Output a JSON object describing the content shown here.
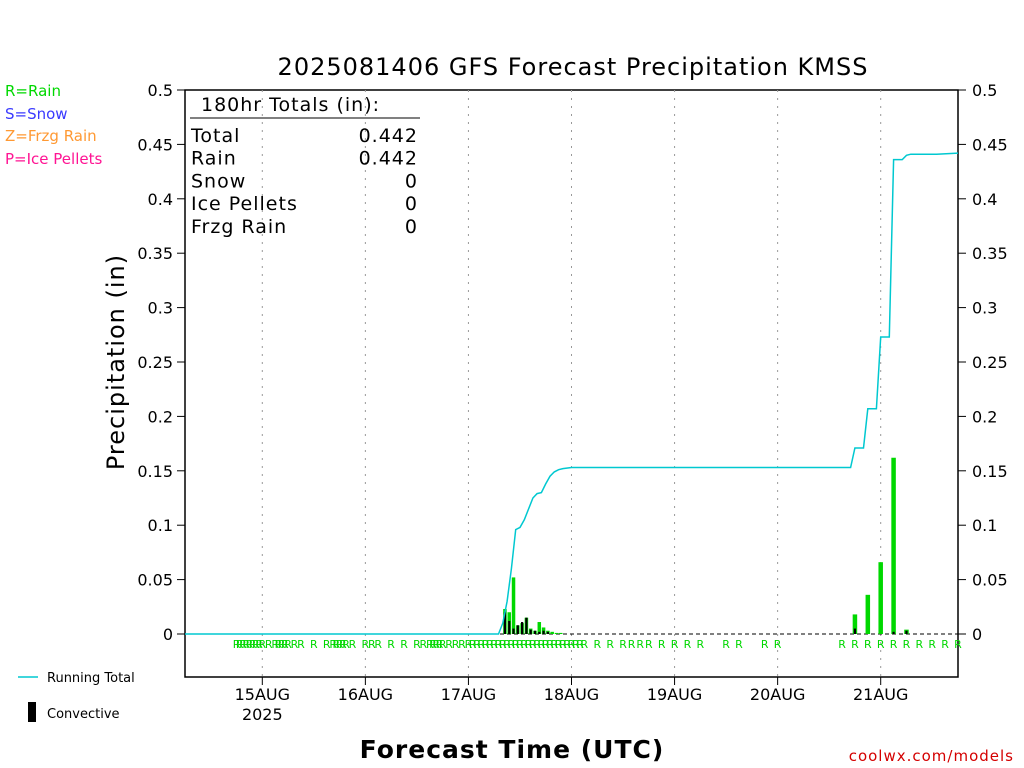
{
  "colors": {
    "rain": "#00d800",
    "snow": "#3a3aff",
    "frzg_rain": "#ff9933",
    "ice_pellets": "#ff1493",
    "running_total": "#00c8d0",
    "convective": "#000000",
    "grid": "#999999",
    "watermark": "#d40000"
  },
  "legend_left": {
    "rain": "R=Rain",
    "snow": "S=Snow",
    "frzg_rain": "Z=Frzg Rain",
    "ice_pellets": "P=Ice Pellets"
  },
  "legend_bottom": {
    "running_total": "Running Total",
    "convective": "Convective"
  },
  "totals_box": {
    "title": "180hr Totals (in):",
    "rows": [
      {
        "label": "Total",
        "value": "0.442"
      },
      {
        "label": "Rain",
        "value": "0.442"
      },
      {
        "label": "Snow",
        "value": "0"
      },
      {
        "label": "Ice Pellets",
        "value": "0"
      },
      {
        "label": "Frzg Rain",
        "value": "0"
      }
    ]
  },
  "watermark": "coolwx.com/models",
  "chart_data": {
    "type": "bar",
    "title": "2025081406 GFS Forecast Precipitation KMSS",
    "xlabel": "Forecast Time (UTC)",
    "ylabel": "Precipitation (in)",
    "xlim_hours": [
      0,
      180
    ],
    "ylim": [
      -0.04,
      0.5
    ],
    "yticks": [
      0,
      0.05,
      0.1,
      0.15,
      0.2,
      0.25,
      0.3,
      0.35,
      0.4,
      0.45,
      0.5
    ],
    "ytick_labels": [
      "0",
      "0.05",
      "0.1",
      "0.15",
      "0.2",
      "0.25",
      "0.3",
      "0.35",
      "0.4",
      "0.45",
      "0.5"
    ],
    "xticks": [
      {
        "hour": 18,
        "label": "15AUG",
        "sublabel": "2025"
      },
      {
        "hour": 42,
        "label": "16AUG",
        "sublabel": ""
      },
      {
        "hour": 66,
        "label": "17AUG",
        "sublabel": ""
      },
      {
        "hour": 90,
        "label": "18AUG",
        "sublabel": ""
      },
      {
        "hour": 114,
        "label": "19AUG",
        "sublabel": ""
      },
      {
        "hour": 138,
        "label": "20AUG",
        "sublabel": ""
      },
      {
        "hour": 162,
        "label": "21AUG",
        "sublabel": ""
      }
    ],
    "grid": "vertical dotted",
    "legend": "left",
    "precip_bars": [
      [
        74.5,
        0.023
      ],
      [
        75.5,
        0.02
      ],
      [
        76.5,
        0.052
      ],
      [
        77.5,
        0.008
      ],
      [
        78.5,
        0.01
      ],
      [
        79.5,
        0.015
      ],
      [
        80.5,
        0.005
      ],
      [
        81.5,
        0.003
      ],
      [
        82.5,
        0.011
      ],
      [
        83.5,
        0.006
      ],
      [
        84.5,
        0.003
      ],
      [
        85.5,
        0.002
      ],
      [
        86.5,
        0.001
      ],
      [
        87.5,
        0.001
      ],
      [
        156,
        0.018
      ],
      [
        159,
        0.036
      ],
      [
        162,
        0.066
      ],
      [
        165,
        0.162
      ],
      [
        168,
        0.004
      ]
    ],
    "convective_bars": [
      [
        74.5,
        0.02
      ],
      [
        75.5,
        0.012
      ],
      [
        76.5,
        0.005
      ],
      [
        77.5,
        0.008
      ],
      [
        78.5,
        0.011
      ],
      [
        79.5,
        0.015
      ],
      [
        80.5,
        0.004
      ],
      [
        81.5,
        0.003
      ],
      [
        82.5,
        0.002
      ],
      [
        83.5,
        0.003
      ],
      [
        84.5,
        0.002
      ],
      [
        156,
        0.005
      ],
      [
        165,
        0.002
      ],
      [
        168,
        0.003
      ]
    ],
    "running_total": [
      [
        0,
        0
      ],
      [
        73,
        0
      ],
      [
        74,
        0.01
      ],
      [
        75,
        0.03
      ],
      [
        76,
        0.06
      ],
      [
        77,
        0.096
      ],
      [
        78,
        0.098
      ],
      [
        79,
        0.105
      ],
      [
        80,
        0.115
      ],
      [
        81,
        0.125
      ],
      [
        82,
        0.129
      ],
      [
        83,
        0.13
      ],
      [
        84,
        0.138
      ],
      [
        85,
        0.145
      ],
      [
        86,
        0.149
      ],
      [
        87,
        0.151
      ],
      [
        88,
        0.152
      ],
      [
        90,
        0.153
      ],
      [
        100,
        0.153
      ],
      [
        130,
        0.153
      ],
      [
        155,
        0.153
      ],
      [
        156,
        0.171
      ],
      [
        158,
        0.171
      ],
      [
        159,
        0.207
      ],
      [
        161,
        0.207
      ],
      [
        162,
        0.273
      ],
      [
        164,
        0.273
      ],
      [
        165,
        0.436
      ],
      [
        167,
        0.436
      ],
      [
        168,
        0.44
      ],
      [
        169,
        0.441
      ],
      [
        175,
        0.441
      ],
      [
        180,
        0.442
      ]
    ],
    "ptype_markers": {
      "label": "R",
      "hours": [
        12,
        12.75,
        13.5,
        14.25,
        15,
        15.75,
        16.5,
        17.25,
        18,
        19.5,
        21,
        21.75,
        22.5,
        23.25,
        24,
        25.5,
        27,
        30,
        33,
        34.5,
        35.25,
        36,
        36.75,
        37.5,
        39,
        42,
        43.5,
        45,
        48,
        51,
        54,
        55.5,
        57,
        57.75,
        58.5,
        59.25,
        60,
        61.5,
        63,
        64.5,
        66,
        67,
        68,
        69,
        70,
        71,
        72,
        73,
        74,
        75,
        76,
        77,
        78,
        79,
        80,
        81,
        82,
        83,
        84,
        85,
        86,
        87,
        88,
        89,
        90,
        91,
        92,
        93,
        96,
        99,
        102,
        104,
        106,
        108,
        111,
        114,
        117,
        120,
        126,
        129,
        135,
        138,
        153,
        156,
        159,
        162,
        165,
        168,
        171,
        174,
        177,
        180
      ]
    }
  }
}
